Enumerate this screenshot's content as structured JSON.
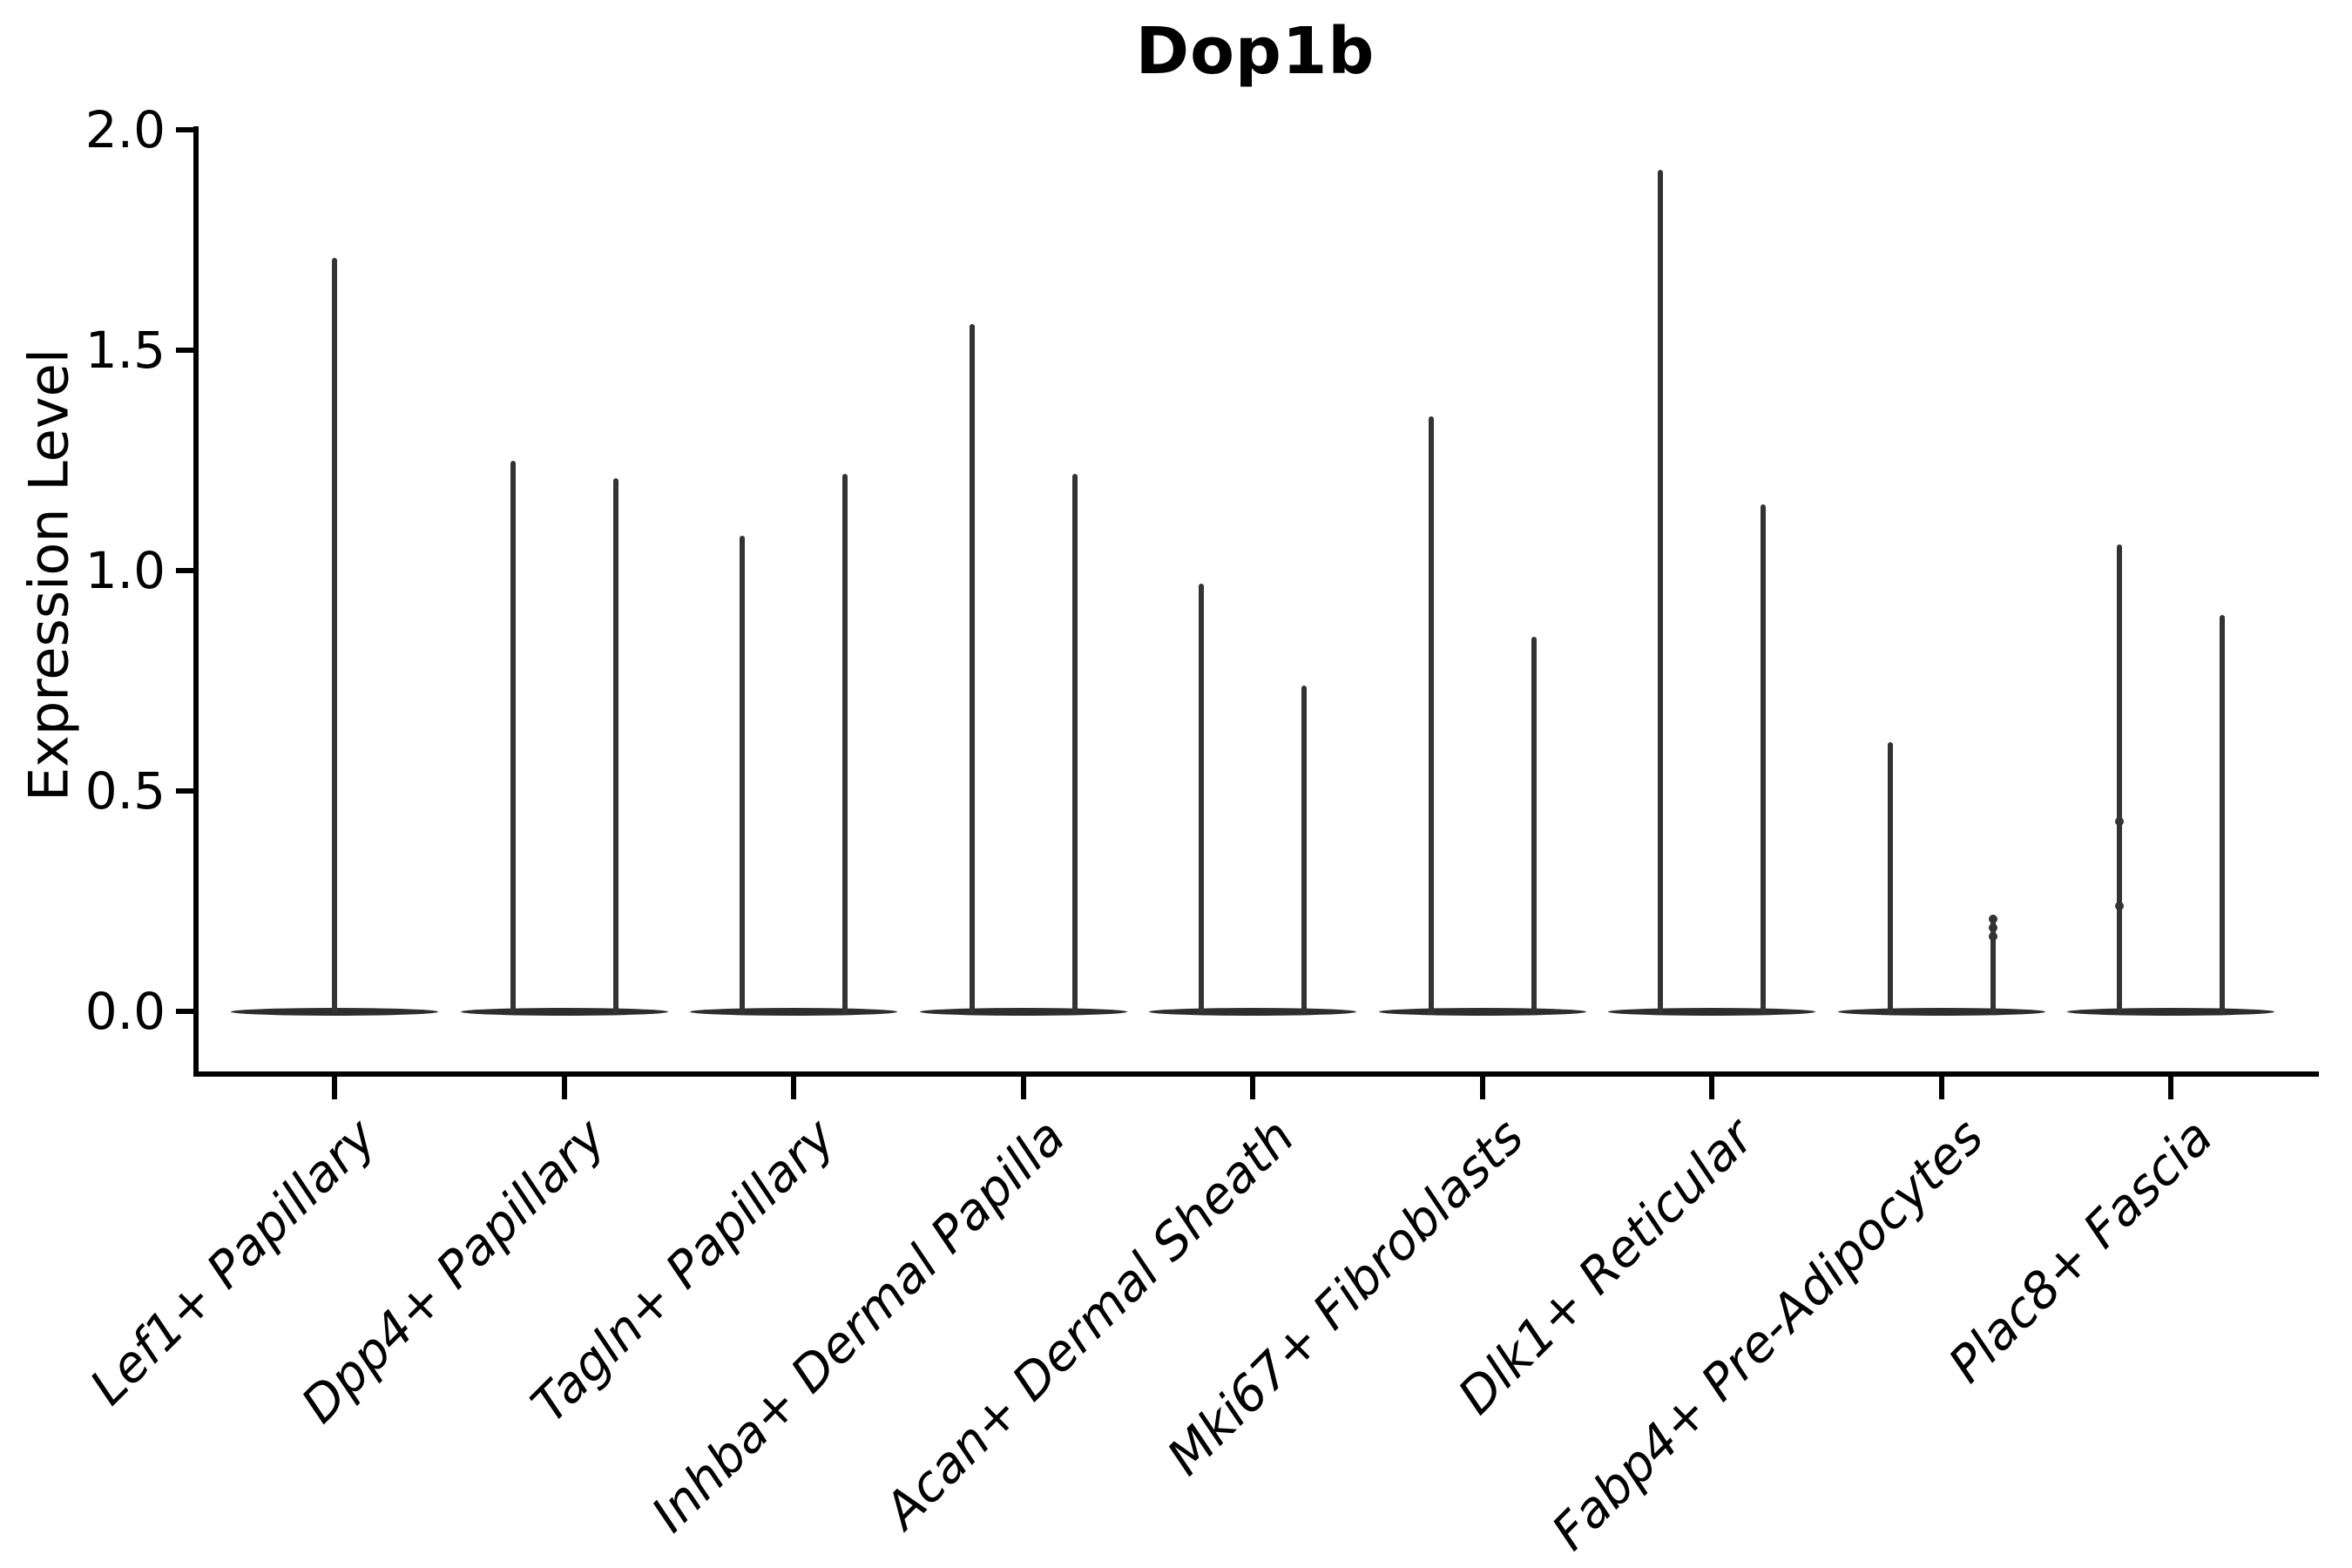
{
  "figure": {
    "title": "Dop1b"
  },
  "axes": {
    "ylabel": "Expression Level",
    "ytick_labels": [
      "2.0",
      "1.5",
      "1.0",
      "0.5",
      "0.0"
    ]
  },
  "chart_data": {
    "type": "violin",
    "title": "Dop1b",
    "xlabel": "",
    "ylabel": "Expression Level",
    "ylim": [
      0.0,
      2.0
    ],
    "yticks": [
      0.0,
      0.5,
      1.0,
      1.5,
      2.0
    ],
    "grid": false,
    "legend": null,
    "categories": [
      "Lef1+ Papillary",
      "Dpp4+ Papillary",
      "Tagln+ Papillary",
      "Inhba+ Dermal Papilla",
      "Acan+ Dermal Sheath",
      "Mki67+ Fibroblasts",
      "Dlk1+ Reticular",
      "Fabp4+ Pre-Adipocytes",
      "Plac8+ Fascia"
    ],
    "violin_shape_note": "Each violin collapses to a flat lens at expression 0 with a thin vertical spike reaching its maximum expression value",
    "violins_per_category": [
      [
        1.71
      ],
      [
        1.25,
        1.21
      ],
      [
        1.08,
        1.22
      ],
      [
        1.56,
        1.22
      ],
      [
        0.97,
        0.74
      ],
      [
        1.35,
        0.85
      ],
      [
        1.91,
        1.15
      ],
      [
        0.61,
        0.22
      ],
      [
        1.06,
        0.9
      ]
    ],
    "dot_marks": [
      {
        "category_index": 7,
        "violin_index": 1,
        "values": [
          0.21,
          0.19,
          0.17
        ]
      },
      {
        "category_index": 8,
        "violin_index": 0,
        "values": [
          0.43,
          0.24
        ]
      }
    ],
    "colors": {
      "violin": "#333333",
      "violin_base": "#2d2d2d",
      "axis": "#000000",
      "text": "#000000",
      "background": "#ffffff"
    }
  }
}
